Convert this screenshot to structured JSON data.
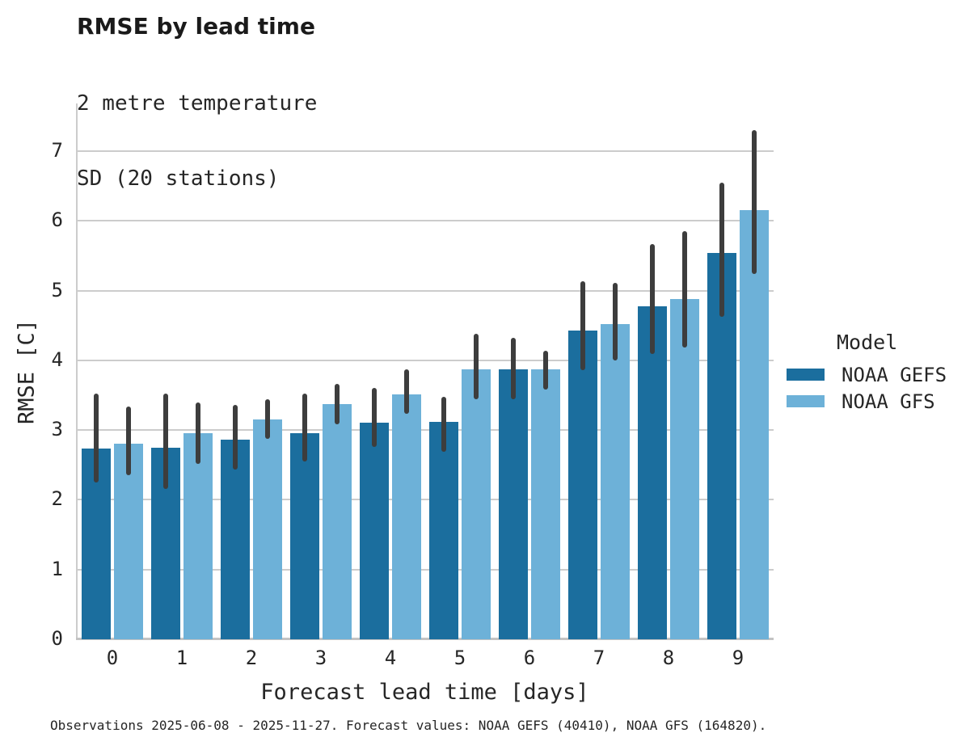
{
  "header": {
    "title": "RMSE by lead time",
    "subtitle_line1": "2 metre temperature",
    "subtitle_line2": "SD (20 stations)"
  },
  "legend": {
    "title": "Model",
    "entries": [
      {
        "label": "NOAA GEFS",
        "color": "#1b6e9e"
      },
      {
        "label": "NOAA GFS",
        "color": "#6db1d8"
      }
    ]
  },
  "footer": {
    "caption": "Observations 2025-06-08 - 2025-11-27. Forecast values: NOAA GEFS (40410), NOAA GFS (164820)."
  },
  "chart_data": {
    "type": "bar",
    "title": "RMSE by lead time",
    "subtitle": "2 metre temperature, SD (20 stations)",
    "xlabel": "Forecast lead time [days]",
    "ylabel": "RMSE [C]",
    "categories": [
      "0",
      "1",
      "2",
      "3",
      "4",
      "5",
      "6",
      "7",
      "8",
      "9"
    ],
    "yticks": [
      0,
      1,
      2,
      3,
      4,
      5,
      6,
      7
    ],
    "ylim": [
      0,
      7.68
    ],
    "grid": true,
    "legend_position": "right",
    "error_bar_color": "#3d3d3d",
    "gridline_color": "#cccccc",
    "series": [
      {
        "name": "NOAA GEFS",
        "color": "#1b6e9e",
        "values": [
          2.73,
          2.75,
          2.86,
          2.96,
          3.11,
          3.12,
          3.87,
          4.43,
          4.78,
          5.54
        ],
        "error_low": [
          2.25,
          2.15,
          2.43,
          2.55,
          2.76,
          2.69,
          3.44,
          3.86,
          4.09,
          4.62
        ],
        "error_high": [
          3.52,
          3.52,
          3.36,
          3.52,
          3.61,
          3.48,
          4.32,
          5.13,
          5.67,
          6.55
        ]
      },
      {
        "name": "NOAA GFS",
        "color": "#6db1d8",
        "values": [
          2.81,
          2.96,
          3.15,
          3.37,
          3.51,
          3.87,
          3.87,
          4.52,
          4.88,
          6.15
        ],
        "error_low": [
          2.35,
          2.52,
          2.88,
          3.08,
          3.23,
          3.44,
          3.58,
          4.0,
          4.18,
          5.24
        ],
        "error_high": [
          3.34,
          3.4,
          3.44,
          3.66,
          3.87,
          4.38,
          4.14,
          5.11,
          5.85,
          7.3
        ]
      }
    ]
  }
}
